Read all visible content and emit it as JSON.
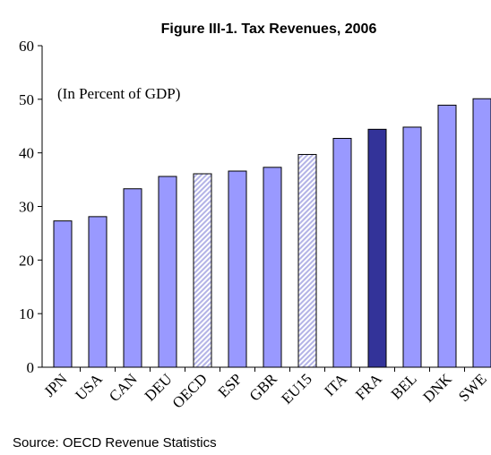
{
  "chart_data": {
    "type": "bar",
    "title": "Figure III-1.  Tax  Revenues, 2006",
    "annotation": "(In Percent of GDP)",
    "source": "Source: OECD Revenue Statistics",
    "categories": [
      "JPN",
      "USA",
      "CAN",
      "DEU",
      "OECD",
      "ESP",
      "GBR",
      "EU15",
      "ITA",
      "FRA",
      "BEL",
      "DNK",
      "SWE"
    ],
    "values": [
      27.3,
      28.1,
      33.3,
      35.6,
      36.1,
      36.6,
      37.3,
      39.7,
      42.7,
      44.4,
      44.8,
      48.9,
      50.1
    ],
    "colors": [
      "#9999ff",
      "#9999ff",
      "#9999ff",
      "#9999ff",
      "#ccccff",
      "#9999ff",
      "#9999ff",
      "#ccccff",
      "#9999ff",
      "#333399",
      "#9999ff",
      "#9999ff",
      "#9999ff"
    ],
    "hatched": [
      false,
      false,
      false,
      false,
      true,
      false,
      false,
      true,
      false,
      false,
      false,
      false,
      false
    ],
    "ylim": [
      0,
      60
    ],
    "yticks": [
      0,
      10,
      20,
      30,
      40,
      50,
      60
    ],
    "grid": false
  }
}
